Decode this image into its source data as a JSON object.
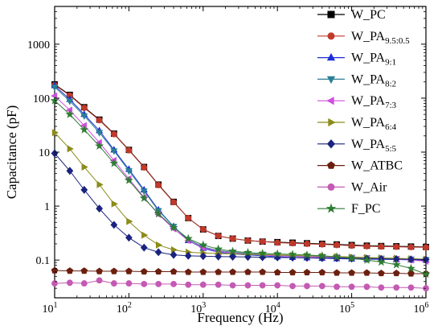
{
  "chart_data": {
    "type": "line",
    "title": "",
    "xlabel": "Frequency (Hz)",
    "ylabel": "Capacitance (pF)",
    "x_scale": "log",
    "y_scale": "log",
    "xlim": [
      10,
      1000000
    ],
    "ylim": [
      0.02,
      5000
    ],
    "x_ticks": [
      {
        "value": 10,
        "base": "10",
        "exp": "1"
      },
      {
        "value": 100,
        "base": "10",
        "exp": "2"
      },
      {
        "value": 1000,
        "base": "10",
        "exp": "3"
      },
      {
        "value": 10000,
        "base": "10",
        "exp": "4"
      },
      {
        "value": 100000,
        "base": "10",
        "exp": "5"
      },
      {
        "value": 1000000,
        "base": "10",
        "exp": "6"
      }
    ],
    "y_ticks": [
      {
        "value": 0.1,
        "label": "0.1"
      },
      {
        "value": 1,
        "label": "1"
      },
      {
        "value": 10,
        "label": "10"
      },
      {
        "value": 100,
        "label": "100"
      },
      {
        "value": 1000,
        "label": "1000"
      }
    ],
    "grid": false,
    "legend_position": "top-right",
    "series": [
      {
        "name": "W_PC",
        "label_main": "W_PC",
        "label_sub": "",
        "color": "#000000",
        "marker": "square",
        "x": [
          10,
          16,
          25,
          40,
          63,
          100,
          160,
          250,
          400,
          630,
          1000,
          1600,
          2500,
          4000,
          6300,
          10000,
          16000,
          25000,
          40000,
          63000,
          100000,
          160000,
          250000,
          400000,
          630000,
          1000000
        ],
        "y": [
          180,
          115,
          68,
          40,
          22,
          11,
          5.3,
          2.5,
          1.2,
          0.6,
          0.37,
          0.28,
          0.25,
          0.23,
          0.22,
          0.215,
          0.21,
          0.205,
          0.2,
          0.195,
          0.19,
          0.185,
          0.182,
          0.18,
          0.178,
          0.175
        ]
      },
      {
        "name": "W_PA9.5:0.5",
        "label_main": "W_PA",
        "label_sub": "9.5:0.5",
        "color": "#c0392b",
        "marker": "circle",
        "x": [
          10,
          16,
          25,
          40,
          63,
          100,
          160,
          250,
          400,
          630,
          1000,
          1600,
          2500,
          4000,
          6300,
          10000,
          16000,
          25000,
          40000,
          63000,
          100000,
          160000,
          250000,
          400000,
          630000,
          1000000
        ],
        "y": [
          175,
          112,
          66,
          39,
          21.5,
          10.8,
          5.2,
          2.45,
          1.18,
          0.6,
          0.37,
          0.28,
          0.25,
          0.23,
          0.22,
          0.21,
          0.205,
          0.2,
          0.195,
          0.19,
          0.185,
          0.18,
          0.178,
          0.176,
          0.174,
          0.172
        ]
      },
      {
        "name": "W_PA9:1",
        "label_main": "W_PA",
        "label_sub": "9:1",
        "color": "#1c2fd6",
        "marker": "triangle-up",
        "x": [
          10,
          16,
          25,
          40,
          63,
          100,
          160,
          250,
          400,
          630,
          1000,
          1600,
          2500,
          4000,
          6300,
          10000,
          16000,
          25000,
          40000,
          63000,
          100000,
          160000,
          250000,
          400000,
          630000,
          1000000
        ],
        "y": [
          170,
          95,
          50,
          25,
          11,
          4.8,
          2,
          0.85,
          0.42,
          0.23,
          0.165,
          0.14,
          0.13,
          0.125,
          0.12,
          0.115,
          0.112,
          0.11,
          0.108,
          0.106,
          0.105,
          0.104,
          0.103,
          0.102,
          0.101,
          0.1
        ]
      },
      {
        "name": "W_PA8:2",
        "label_main": "W_PA",
        "label_sub": "8:2",
        "color": "#2a7f95",
        "marker": "triangle-down",
        "x": [
          10,
          16,
          25,
          40,
          63,
          100,
          160,
          250,
          400,
          630,
          1000,
          1600,
          2500,
          4000,
          6300,
          10000,
          16000,
          25000,
          40000,
          63000,
          100000,
          160000,
          250000,
          400000,
          630000,
          1000000
        ],
        "y": [
          160,
          88,
          47,
          23,
          10.5,
          4.5,
          1.9,
          0.82,
          0.42,
          0.24,
          0.175,
          0.15,
          0.14,
          0.132,
          0.128,
          0.124,
          0.12,
          0.118,
          0.116,
          0.114,
          0.112,
          0.11,
          0.108,
          0.106,
          0.104,
          0.102
        ]
      },
      {
        "name": "W_PA7:3",
        "label_main": "W_PA",
        "label_sub": "7:3",
        "color": "#d04ee0",
        "marker": "triangle-left",
        "x": [
          10,
          16,
          25,
          40,
          63,
          100,
          160,
          250,
          400,
          630,
          1000,
          1600,
          2500,
          4000,
          6300,
          10000,
          16000,
          25000,
          40000,
          63000,
          100000,
          160000,
          250000,
          400000,
          630000,
          1000000
        ],
        "y": [
          110,
          60,
          31,
          15,
          7,
          3.2,
          1.45,
          0.7,
          0.38,
          0.23,
          0.17,
          0.145,
          0.135,
          0.128,
          0.124,
          0.12,
          0.117,
          0.115,
          0.113,
          0.111,
          0.109,
          0.107,
          0.105,
          0.103,
          0.1,
          0.095
        ]
      },
      {
        "name": "W_PA6:4",
        "label_main": "W_PA",
        "label_sub": "6:4",
        "color": "#8b8b1a",
        "marker": "triangle-right",
        "x": [
          10,
          16,
          25,
          40,
          63,
          100,
          160,
          250,
          400,
          630,
          1000,
          1600,
          2500,
          4000,
          6300,
          10000,
          16000,
          25000,
          40000,
          63000,
          100000,
          160000,
          250000,
          400000,
          630000,
          1000000
        ],
        "y": [
          23,
          11.5,
          5.3,
          2.5,
          1.1,
          0.52,
          0.29,
          0.19,
          0.155,
          0.14,
          0.135,
          0.132,
          0.13,
          0.128,
          0.126,
          0.124,
          0.122,
          0.12,
          0.118,
          0.116,
          0.114,
          0.112,
          0.11,
          0.108,
          0.106,
          0.104
        ]
      },
      {
        "name": "W_PA5:5",
        "label_main": "W_PA",
        "label_sub": "5:5",
        "color": "#1a237e",
        "marker": "diamond",
        "x": [
          10,
          16,
          25,
          40,
          63,
          100,
          160,
          250,
          400,
          630,
          1000,
          1600,
          2500,
          4000,
          6300,
          10000,
          16000,
          25000,
          40000,
          63000,
          100000,
          160000,
          250000,
          400000,
          630000,
          1000000
        ],
        "y": [
          9.5,
          4.5,
          2,
          0.9,
          0.45,
          0.26,
          0.17,
          0.14,
          0.125,
          0.12,
          0.118,
          0.116,
          0.115,
          0.114,
          0.113,
          0.112,
          0.111,
          0.11,
          0.109,
          0.108,
          0.107,
          0.106,
          0.105,
          0.104,
          0.103,
          0.102
        ]
      },
      {
        "name": "W_ATBC",
        "label_main": "W_ATBC",
        "label_sub": "",
        "color": "#6b1f0f",
        "marker": "pentagon",
        "x": [
          10,
          16,
          25,
          40,
          63,
          100,
          160,
          250,
          400,
          630,
          1000,
          1600,
          2500,
          4000,
          6300,
          10000,
          16000,
          25000,
          40000,
          63000,
          100000,
          160000,
          250000,
          400000,
          630000,
          1000000
        ],
        "y": [
          0.064,
          0.063,
          0.063,
          0.062,
          0.062,
          0.062,
          0.061,
          0.061,
          0.061,
          0.06,
          0.06,
          0.06,
          0.06,
          0.06,
          0.06,
          0.059,
          0.059,
          0.059,
          0.059,
          0.058,
          0.058,
          0.058,
          0.057,
          0.057,
          0.056,
          0.056
        ]
      },
      {
        "name": "W_Air",
        "label_main": "W_Air",
        "label_sub": "",
        "color": "#c45ab3",
        "marker": "circle",
        "x": [
          10,
          16,
          25,
          40,
          63,
          100,
          160,
          250,
          400,
          630,
          1000,
          1600,
          2500,
          4000,
          6300,
          10000,
          16000,
          25000,
          40000,
          63000,
          100000,
          160000,
          250000,
          400000,
          630000,
          1000000
        ],
        "y": [
          0.037,
          0.038,
          0.037,
          0.042,
          0.037,
          0.037,
          0.036,
          0.036,
          0.036,
          0.035,
          0.035,
          0.035,
          0.034,
          0.034,
          0.034,
          0.034,
          0.033,
          0.033,
          0.033,
          0.032,
          0.032,
          0.032,
          0.031,
          0.031,
          0.031,
          0.03
        ]
      },
      {
        "name": "F_PC",
        "label_main": "F_PC",
        "label_sub": "",
        "color": "#2e7d32",
        "marker": "star",
        "x": [
          10,
          16,
          25,
          40,
          63,
          100,
          160,
          250,
          400,
          630,
          1000,
          1600,
          2500,
          4000,
          6300,
          10000,
          16000,
          25000,
          40000,
          63000,
          100000,
          160000,
          250000,
          400000,
          630000,
          1000000
        ],
        "y": [
          90,
          50,
          26,
          13,
          6.2,
          3,
          1.4,
          0.72,
          0.4,
          0.25,
          0.19,
          0.16,
          0.145,
          0.138,
          0.133,
          0.13,
          0.127,
          0.124,
          0.12,
          0.115,
          0.108,
          0.1,
          0.092,
          0.082,
          0.07,
          0.055
        ]
      }
    ]
  }
}
